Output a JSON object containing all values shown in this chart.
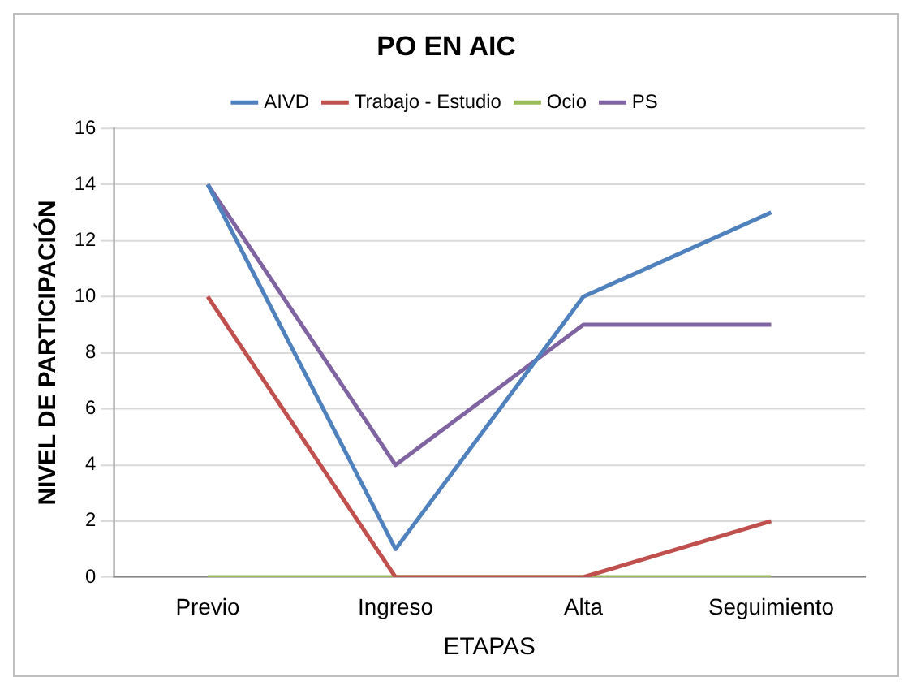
{
  "chart_data": {
    "type": "line",
    "title": "PO EN AIC",
    "xlabel": "ETAPAS",
    "ylabel": "NIVEL DE PARTICIPACIÓN",
    "categories": [
      "Previo",
      "Ingreso",
      "Alta",
      "Seguimiento"
    ],
    "series": [
      {
        "name": "AIVD",
        "color": "#4f81bd",
        "values": [
          14,
          1,
          10,
          13
        ]
      },
      {
        "name": "Trabajo - Estudio",
        "color": "#c0504d",
        "values": [
          10,
          0,
          0,
          2
        ]
      },
      {
        "name": "Ocio",
        "color": "#9bbb59",
        "values": [
          0,
          0,
          0,
          0
        ]
      },
      {
        "name": "PS",
        "color": "#8064a2",
        "values": [
          14,
          4,
          9,
          9
        ]
      }
    ],
    "ylim": [
      0,
      16
    ],
    "yticks": [
      0,
      2,
      4,
      6,
      8,
      10,
      12,
      14,
      16
    ],
    "grid": "y",
    "legend": "top",
    "marker": "none",
    "line_style": "solid"
  }
}
